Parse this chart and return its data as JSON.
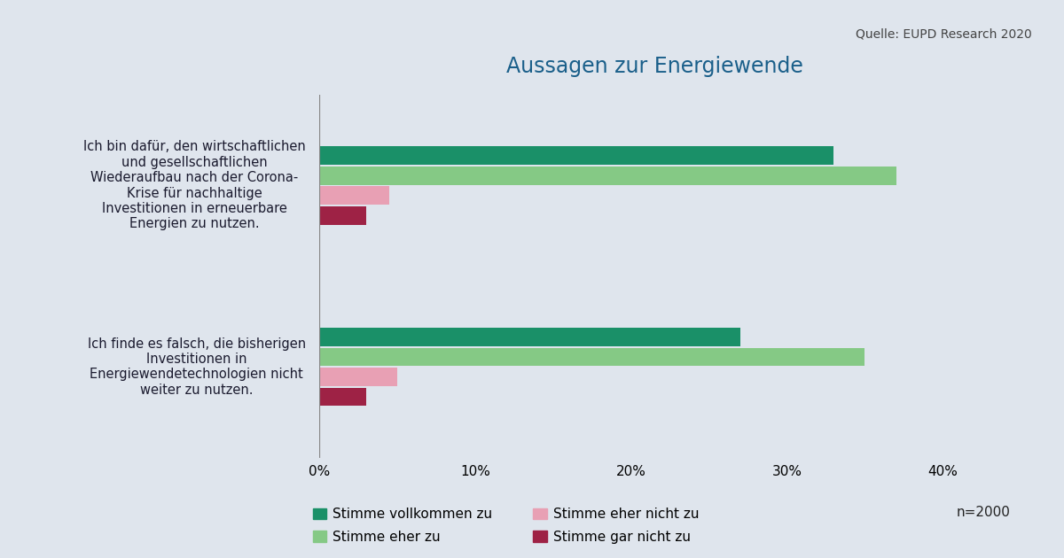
{
  "title": "Aussagen zur Energiewende",
  "source": "Quelle: EUPD Research 2020",
  "n_label": "n=2000",
  "background_color": "#dfe5ed",
  "categories": [
    "Ich bin dafür, den wirtschaftlichen\nund gesellschaftlichen\nWiederaufbau nach der Corona-\nKrise für nachhaltige\nInvestitionen in erneuerbare\nEnergien zu nutzen.",
    "Ich finde es falsch, die bisherigen\nInvestitionen in\nEnergiewendetechnologien nicht\nweiter zu nutzen."
  ],
  "series": [
    {
      "label": "Stimme vollkommen zu",
      "color": "#1a9068",
      "values": [
        33,
        27
      ]
    },
    {
      "label": "Stimme eher zu",
      "color": "#85c985",
      "values": [
        37,
        35
      ]
    },
    {
      "label": "Stimme eher nicht zu",
      "color": "#e8a0b4",
      "values": [
        4.5,
        5
      ]
    },
    {
      "label": "Stimme gar nicht zu",
      "color": "#9e2245",
      "values": [
        3,
        3
      ]
    }
  ],
  "xlim": [
    0,
    43
  ],
  "xticks": [
    0,
    10,
    20,
    30,
    40
  ],
  "xticklabels": [
    "0%",
    "10%",
    "20%",
    "30%",
    "40%"
  ],
  "title_color": "#1a5f8a",
  "title_fontsize": 17,
  "tick_fontsize": 11,
  "legend_fontsize": 11,
  "source_fontsize": 10,
  "bar_height": 0.22,
  "cat_centers": [
    3.0,
    1.0
  ]
}
